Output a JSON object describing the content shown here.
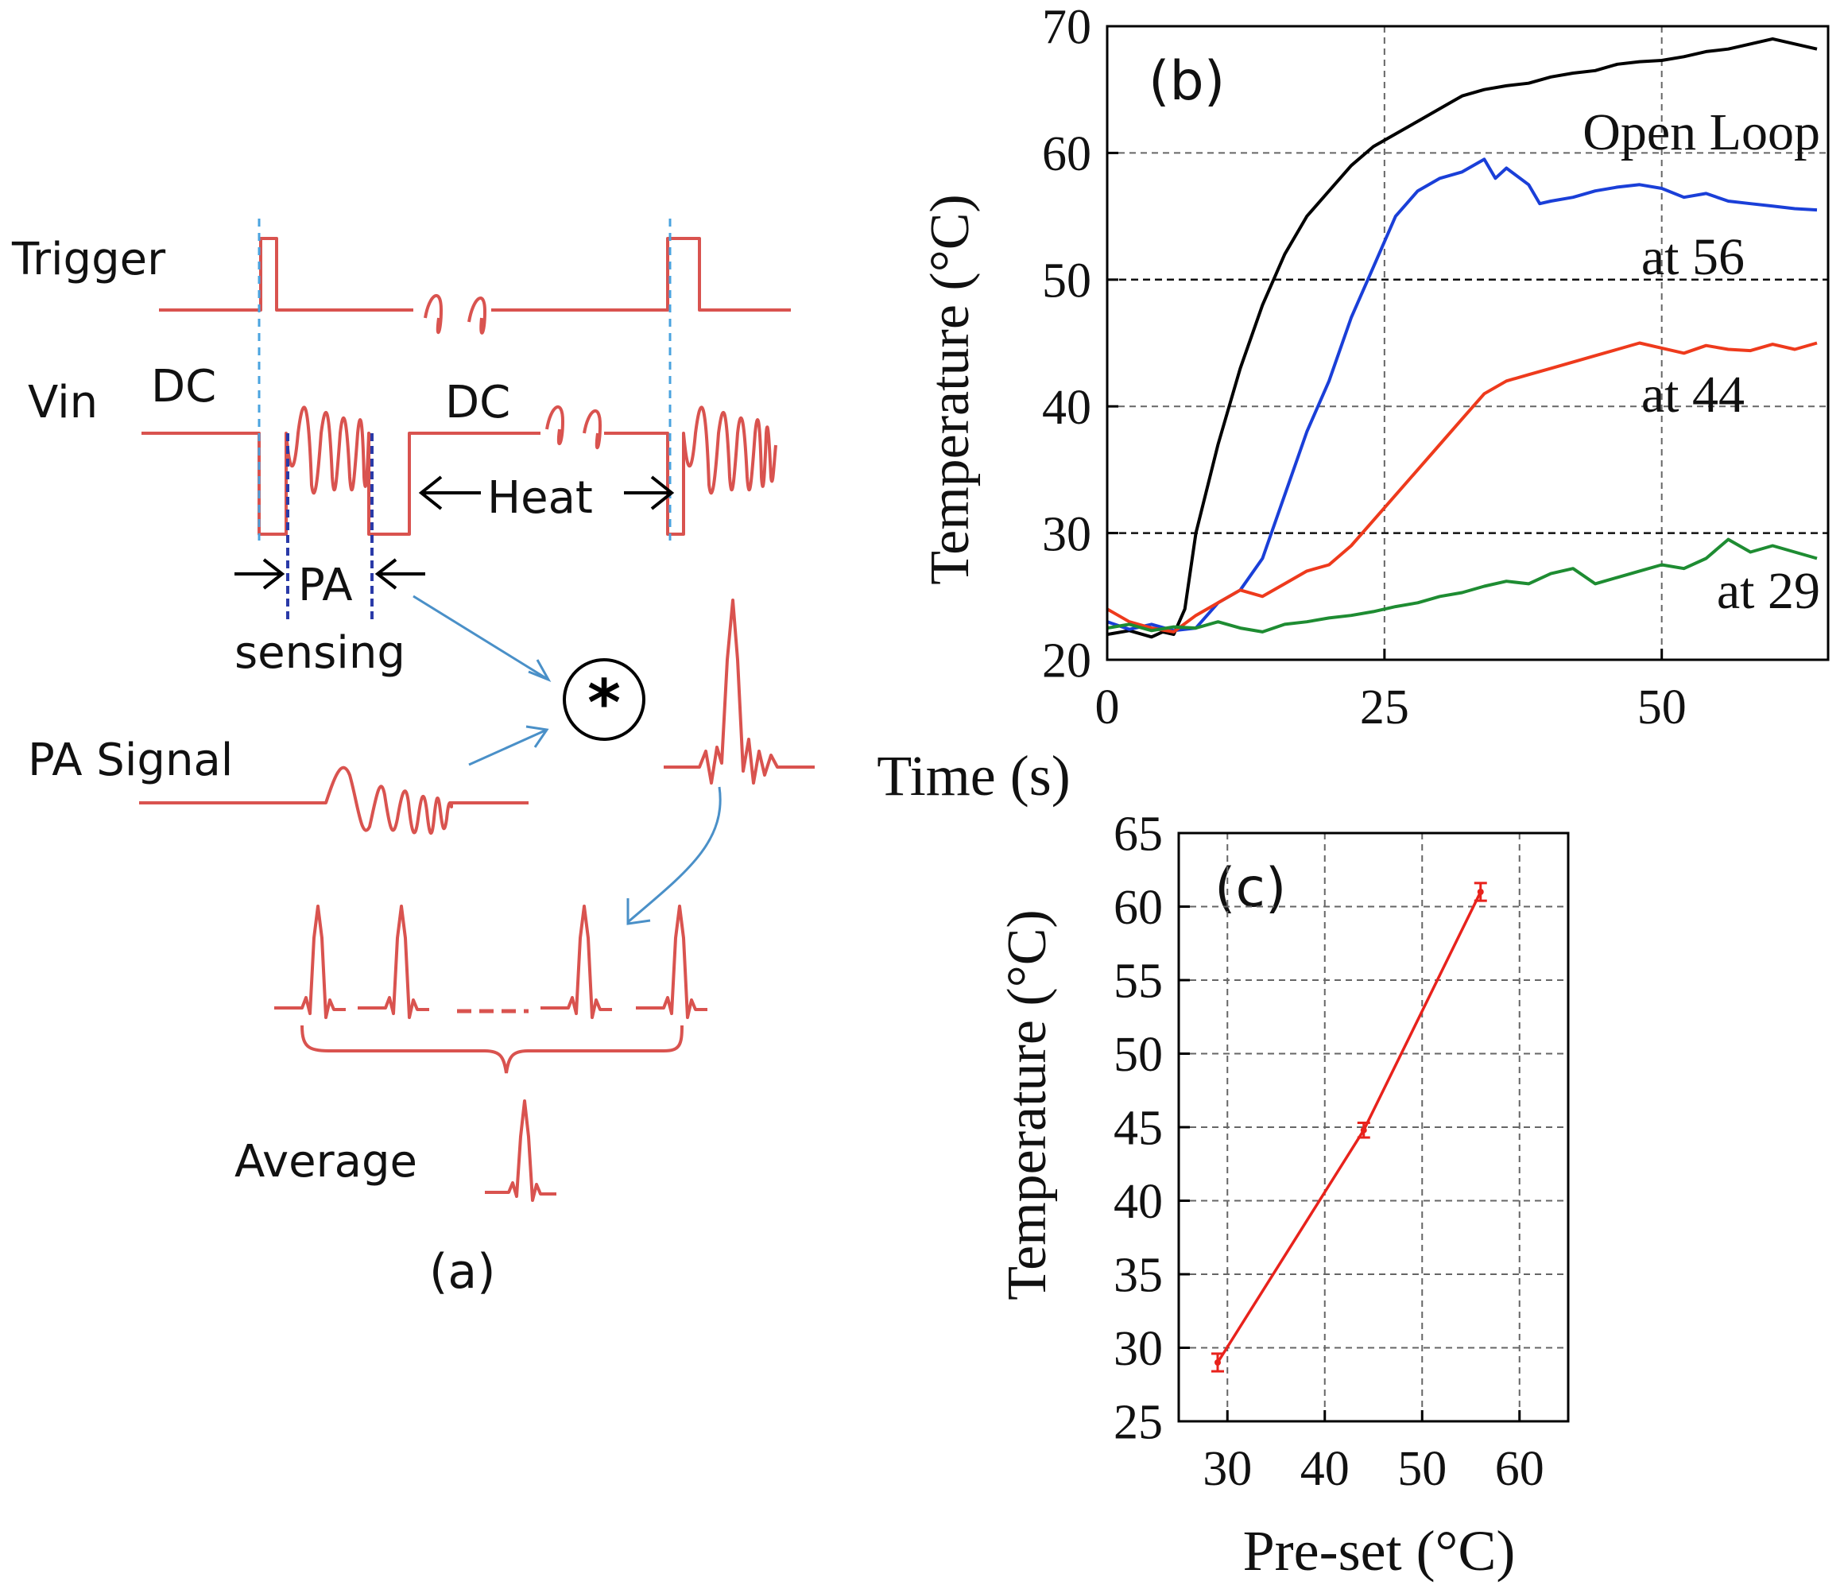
{
  "panel_a": {
    "label": "(a)",
    "trigger": "Trigger",
    "vin": "Vin",
    "dc_left": "DC",
    "dc_right": "DC",
    "heat": "Heat",
    "pa": "PA",
    "sensing": "sensing",
    "pa_signal": "PA Signal",
    "conv_symbol": "*",
    "average": "Average",
    "colors": {
      "waveform": "#d9534f",
      "guide": "#4aa3df",
      "arrow": "#4a90c8"
    }
  },
  "chart_data": [
    {
      "id": "b",
      "type": "line",
      "panel_label": "(b)",
      "xlabel": "Time (s)",
      "ylabel": "Temperature (°C)",
      "xlim": [
        0,
        65
      ],
      "ylim": [
        20,
        70
      ],
      "xticks": [
        0,
        25,
        50
      ],
      "yticks": [
        20,
        30,
        40,
        50,
        60,
        70
      ],
      "grid": true,
      "series": [
        {
          "name": "Open Loop",
          "color": "#000000",
          "x": [
            0,
            2,
            4,
            5,
            6,
            7,
            8,
            10,
            12,
            14,
            16,
            18,
            20,
            22,
            24,
            26,
            28,
            30,
            32,
            34,
            36,
            38,
            40,
            42,
            44,
            46,
            48,
            50,
            52,
            54,
            56,
            58,
            60,
            62,
            64
          ],
          "y": [
            22,
            22.3,
            21.8,
            22.2,
            22,
            24,
            30,
            37,
            43,
            48,
            52,
            55,
            57,
            59,
            60.5,
            61.5,
            62.5,
            63.5,
            64.5,
            65,
            65.3,
            65.5,
            66,
            66.3,
            66.5,
            67,
            67.2,
            67.3,
            67.6,
            68,
            68.2,
            68.6,
            69,
            68.6,
            68.2
          ]
        },
        {
          "name": "at 56",
          "color": "#1a3fd8",
          "x": [
            0,
            2,
            4,
            6,
            8,
            10,
            12,
            14,
            16,
            18,
            20,
            22,
            24,
            26,
            28,
            30,
            32,
            34,
            35,
            36,
            38,
            39,
            40,
            42,
            44,
            46,
            48,
            50,
            52,
            54,
            56,
            58,
            60,
            62,
            64
          ],
          "y": [
            23,
            22.4,
            22.8,
            22.3,
            22.5,
            24.5,
            25.5,
            28,
            33,
            38,
            42,
            47,
            51,
            55,
            57,
            58,
            58.5,
            59.5,
            58,
            58.8,
            57.5,
            56,
            56.2,
            56.5,
            57,
            57.3,
            57.5,
            57.2,
            56.5,
            56.8,
            56.2,
            56,
            55.8,
            55.6,
            55.5
          ]
        },
        {
          "name": "at 44",
          "color": "#ee3a1c",
          "x": [
            0,
            2,
            4,
            6,
            8,
            10,
            12,
            14,
            16,
            18,
            20,
            22,
            24,
            26,
            28,
            30,
            32,
            34,
            36,
            38,
            40,
            42,
            44,
            46,
            48,
            50,
            52,
            54,
            56,
            58,
            60,
            62,
            64
          ],
          "y": [
            24,
            23,
            22.5,
            22.2,
            23.5,
            24.5,
            25.5,
            25,
            26,
            27,
            27.5,
            29,
            31,
            33,
            35,
            37,
            39,
            41,
            42,
            42.5,
            43,
            43.5,
            44,
            44.5,
            45,
            44.6,
            44.2,
            44.8,
            44.5,
            44.4,
            44.9,
            44.5,
            45
          ]
        },
        {
          "name": "at 29",
          "color": "#1e8c32",
          "x": [
            0,
            2,
            4,
            6,
            8,
            10,
            12,
            14,
            16,
            18,
            20,
            22,
            24,
            26,
            28,
            30,
            32,
            34,
            36,
            38,
            40,
            42,
            44,
            46,
            48,
            50,
            52,
            54,
            56,
            58,
            60,
            62,
            64
          ],
          "y": [
            22.5,
            22.8,
            22.3,
            22.6,
            22.5,
            23,
            22.5,
            22.2,
            22.8,
            23,
            23.3,
            23.5,
            23.8,
            24.2,
            24.5,
            25,
            25.3,
            25.8,
            26.2,
            26,
            26.8,
            27.2,
            26,
            26.5,
            27,
            27.5,
            27.2,
            28,
            29.5,
            28.5,
            29,
            28.5,
            28
          ]
        }
      ]
    },
    {
      "id": "c",
      "type": "line",
      "panel_label": "(c)",
      "xlabel": "Pre-set (°C)",
      "ylabel": "Temperature (°C)",
      "xlim": [
        25,
        65
      ],
      "ylim": [
        25,
        65
      ],
      "xticks": [
        30,
        40,
        50,
        60
      ],
      "yticks": [
        25,
        30,
        35,
        40,
        45,
        50,
        55,
        60,
        65
      ],
      "grid": true,
      "series": [
        {
          "color": "#e8221c",
          "x": [
            29,
            44,
            56
          ],
          "y": [
            29,
            44.8,
            61
          ],
          "yerr": [
            0.6,
            0.5,
            0.6
          ]
        }
      ]
    }
  ]
}
